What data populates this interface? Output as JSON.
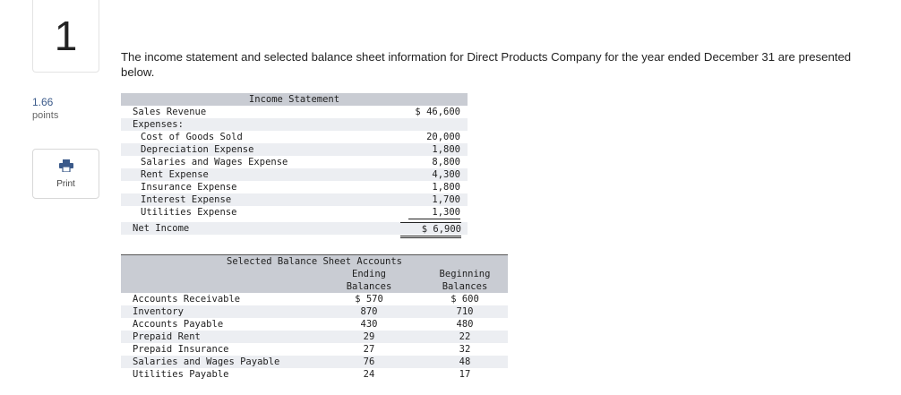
{
  "question": {
    "number": "1",
    "points_value": "1.66",
    "points_label": "points",
    "print_label": "Print"
  },
  "intro": "The income statement and selected balance sheet information for Direct Products Company for the year ended December 31 are presented below.",
  "income_statement": {
    "title": "Income Statement",
    "sales_label": "Sales Revenue",
    "sales_value": "$ 46,600",
    "expenses_label": "Expenses:",
    "expenses": [
      {
        "label": "Cost of Goods Sold",
        "value": "20,000"
      },
      {
        "label": "Depreciation Expense",
        "value": "1,800"
      },
      {
        "label": "Salaries and Wages Expense",
        "value": "8,800"
      },
      {
        "label": "Rent Expense",
        "value": "4,300"
      },
      {
        "label": "Insurance Expense",
        "value": "1,800"
      },
      {
        "label": "Interest Expense",
        "value": "1,700"
      },
      {
        "label": "Utilities Expense",
        "value": "1,300"
      }
    ],
    "net_label": "Net Income",
    "net_value": "$ 6,900"
  },
  "balance_sheet": {
    "title": "Selected Balance Sheet Accounts",
    "col1_line1": "Ending",
    "col1_line2": "Balances",
    "col2_line1": "Beginning",
    "col2_line2": "Balances",
    "rows": [
      {
        "label": "Accounts Receivable",
        "ending": "$ 570",
        "beginning": "$ 600"
      },
      {
        "label": "Inventory",
        "ending": "870",
        "beginning": "710"
      },
      {
        "label": "Accounts Payable",
        "ending": "430",
        "beginning": "480"
      },
      {
        "label": "Prepaid Rent",
        "ending": "29",
        "beginning": "22"
      },
      {
        "label": "Prepaid Insurance",
        "ending": "27",
        "beginning": "32"
      },
      {
        "label": "Salaries and Wages Payable",
        "ending": "76",
        "beginning": "48"
      },
      {
        "label": "Utilities Payable",
        "ending": "24",
        "beginning": "17"
      }
    ]
  }
}
